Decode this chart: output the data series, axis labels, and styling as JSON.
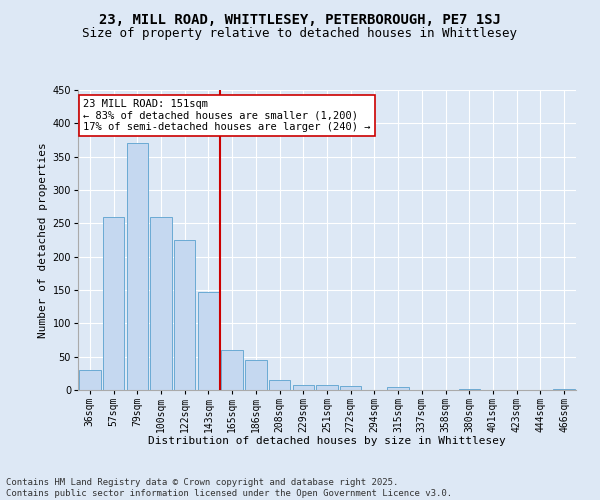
{
  "title": "23, MILL ROAD, WHITTLESEY, PETERBOROUGH, PE7 1SJ",
  "subtitle": "Size of property relative to detached houses in Whittlesey",
  "xlabel": "Distribution of detached houses by size in Whittlesey",
  "ylabel": "Number of detached properties",
  "categories": [
    "36sqm",
    "57sqm",
    "79sqm",
    "100sqm",
    "122sqm",
    "143sqm",
    "165sqm",
    "186sqm",
    "208sqm",
    "229sqm",
    "251sqm",
    "272sqm",
    "294sqm",
    "315sqm",
    "337sqm",
    "358sqm",
    "380sqm",
    "401sqm",
    "423sqm",
    "444sqm",
    "466sqm"
  ],
  "values": [
    30,
    260,
    370,
    260,
    225,
    147,
    60,
    45,
    15,
    8,
    8,
    6,
    0,
    5,
    0,
    0,
    2,
    0,
    0,
    0,
    2
  ],
  "bar_color": "#c5d8f0",
  "bar_edge_color": "#6aaad4",
  "vline_x": 5.5,
  "vline_color": "#cc0000",
  "annotation_text": "23 MILL ROAD: 151sqm\n← 83% of detached houses are smaller (1,200)\n17% of semi-detached houses are larger (240) →",
  "annotation_box_color": "#ffffff",
  "annotation_box_edgecolor": "#cc0000",
  "ylim": [
    0,
    450
  ],
  "yticks": [
    0,
    50,
    100,
    150,
    200,
    250,
    300,
    350,
    400,
    450
  ],
  "bg_color": "#dde8f5",
  "plot_bg_color": "#dde8f5",
  "footer_line1": "Contains HM Land Registry data © Crown copyright and database right 2025.",
  "footer_line2": "Contains public sector information licensed under the Open Government Licence v3.0.",
  "title_fontsize": 10,
  "subtitle_fontsize": 9,
  "axis_label_fontsize": 8,
  "tick_fontsize": 7,
  "annotation_fontsize": 7.5,
  "footer_fontsize": 6.5
}
